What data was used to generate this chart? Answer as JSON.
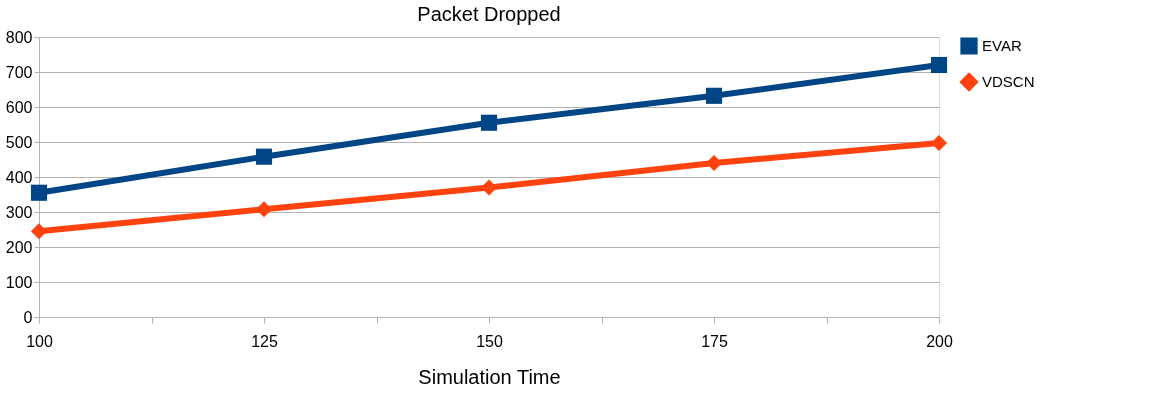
{
  "chart_data": {
    "type": "line",
    "title": "Packet Dropped",
    "xlabel": "Simulation Time",
    "x": [
      100,
      125,
      150,
      175,
      200
    ],
    "series": [
      {
        "name": "EVAR",
        "color": "#004586",
        "marker": "square",
        "values": [
          355,
          458,
          555,
          632,
          720
        ]
      },
      {
        "name": "VDSCN",
        "color": "#ff420e",
        "marker": "diamond",
        "values": [
          245,
          308,
          370,
          440,
          497
        ]
      }
    ],
    "xlim": [
      100,
      200
    ],
    "xticks": [
      100,
      {
        "value": 112.5,
        "label": null
      },
      125,
      {
        "value": 137.5,
        "label": null
      },
      150,
      {
        "value": 162.5,
        "label": null
      },
      175,
      {
        "value": 187.5,
        "label": null
      },
      200
    ],
    "ylim": [
      0,
      800
    ],
    "yticks": [
      0,
      100,
      200,
      300,
      400,
      500,
      600,
      700,
      800
    ],
    "grid": "y",
    "legend": "right",
    "line_style": "solid"
  }
}
